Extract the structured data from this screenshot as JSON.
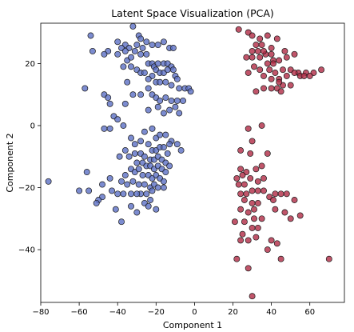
{
  "chart_data": {
    "type": "scatter",
    "title": "Latent Space Visualization (PCA)",
    "xlabel": "Component 1",
    "ylabel": "Component 2",
    "xlim": [
      -80,
      78
    ],
    "ylim": [
      -57,
      33
    ],
    "xticks": [
      -80,
      -60,
      -40,
      -20,
      0,
      20,
      40,
      60
    ],
    "yticks": [
      -40,
      -20,
      0,
      20
    ],
    "grid": false,
    "series": [
      {
        "color": "#5b6fc4",
        "points": [
          [
            -54,
            29
          ],
          [
            -40,
            27
          ],
          [
            -36,
            26
          ],
          [
            -38,
            25
          ],
          [
            -32,
            32
          ],
          [
            -29,
            29
          ],
          [
            -28,
            28
          ],
          [
            -30,
            26
          ],
          [
            -27,
            25
          ],
          [
            -25,
            27
          ],
          [
            -34,
            25
          ],
          [
            -36,
            24
          ],
          [
            -31,
            24
          ],
          [
            -22,
            26
          ],
          [
            -19,
            26
          ],
          [
            -16,
            27
          ],
          [
            -13,
            25
          ],
          [
            -11,
            25
          ],
          [
            -40,
            23
          ],
          [
            -45,
            24
          ],
          [
            -53,
            24
          ],
          [
            -47,
            23
          ],
          [
            -28,
            23
          ],
          [
            -25,
            23
          ],
          [
            -35,
            21
          ],
          [
            -33,
            22
          ],
          [
            -24,
            20
          ],
          [
            -22,
            20
          ],
          [
            -21,
            19
          ],
          [
            -19,
            20
          ],
          [
            -16,
            20
          ],
          [
            -14,
            20
          ],
          [
            -12,
            19
          ],
          [
            -20,
            18
          ],
          [
            -18,
            17
          ],
          [
            -16,
            17
          ],
          [
            -14,
            18
          ],
          [
            -22,
            16
          ],
          [
            -24,
            15
          ],
          [
            -11,
            18
          ],
          [
            -10,
            16
          ],
          [
            -9,
            15
          ],
          [
            -30,
            18
          ],
          [
            -33,
            19
          ],
          [
            -37,
            19
          ],
          [
            -28,
            17
          ],
          [
            -26,
            17
          ],
          [
            -20,
            14
          ],
          [
            -18,
            14
          ],
          [
            -15,
            14
          ],
          [
            -12,
            13
          ],
          [
            -8,
            12
          ],
          [
            -5,
            12
          ],
          [
            -3,
            12
          ],
          [
            -57,
            12
          ],
          [
            -47,
            10
          ],
          [
            -45,
            9
          ],
          [
            -44,
            7
          ],
          [
            -36,
            7
          ],
          [
            -32,
            10
          ],
          [
            -28,
            10
          ],
          [
            -22,
            10
          ],
          [
            -20,
            9
          ],
          [
            -18,
            8
          ],
          [
            -15,
            9
          ],
          [
            -12,
            8
          ],
          [
            -9,
            8
          ],
          [
            -6,
            8
          ],
          [
            -2,
            11
          ],
          [
            -24,
            5
          ],
          [
            -19,
            6
          ],
          [
            -16,
            4
          ],
          [
            -13,
            5
          ],
          [
            -10,
            6
          ],
          [
            -8,
            4
          ],
          [
            -24,
            12
          ],
          [
            -35,
            14
          ],
          [
            -42,
            3
          ],
          [
            -40,
            2
          ],
          [
            -37,
            0
          ],
          [
            -44,
            -1
          ],
          [
            -47,
            -1
          ],
          [
            -26,
            -2
          ],
          [
            -22,
            -1
          ],
          [
            -20,
            -4
          ],
          [
            -18,
            -3
          ],
          [
            -15,
            -3
          ],
          [
            -12,
            -5
          ],
          [
            -9,
            -6
          ],
          [
            -7,
            -8
          ],
          [
            -13,
            -6
          ],
          [
            -33,
            -4
          ],
          [
            -31,
            -6
          ],
          [
            -28,
            -5
          ],
          [
            -24,
            -6
          ],
          [
            -22,
            -8
          ],
          [
            -20,
            -8
          ],
          [
            -18,
            -7
          ],
          [
            -16,
            -7
          ],
          [
            -14,
            -9
          ],
          [
            -36,
            -8
          ],
          [
            -39,
            -10
          ],
          [
            -34,
            -10
          ],
          [
            -31,
            -9
          ],
          [
            -28,
            -9
          ],
          [
            -26,
            -10
          ],
          [
            -23,
            -11
          ],
          [
            -21,
            -11
          ],
          [
            -19,
            -10
          ],
          [
            -17,
            -11
          ],
          [
            -15,
            -12
          ],
          [
            -30,
            -12
          ],
          [
            -27,
            -12
          ],
          [
            -25,
            -13
          ],
          [
            -23,
            -13
          ],
          [
            -21,
            -14
          ],
          [
            -19,
            -13
          ],
          [
            -17,
            -14
          ],
          [
            -15,
            -15
          ],
          [
            -13,
            -13
          ],
          [
            -33,
            -14
          ],
          [
            -31,
            -15
          ],
          [
            -29,
            -14
          ],
          [
            -27,
            -16
          ],
          [
            -24,
            -16
          ],
          [
            -22,
            -17
          ],
          [
            -20,
            -16
          ],
          [
            -18,
            -17
          ],
          [
            -16,
            -18
          ],
          [
            -36,
            -16
          ],
          [
            -38,
            -18
          ],
          [
            -35,
            -19
          ],
          [
            -32,
            -18
          ],
          [
            -29,
            -19
          ],
          [
            -26,
            -19
          ],
          [
            -23,
            -20
          ],
          [
            -21,
            -19
          ],
          [
            -19,
            -20
          ],
          [
            -16,
            -20
          ],
          [
            -44,
            -17
          ],
          [
            -56,
            -15
          ],
          [
            -55,
            -21
          ],
          [
            -48,
            -19
          ],
          [
            -43,
            -21
          ],
          [
            -28,
            -22
          ],
          [
            -25,
            -22
          ],
          [
            -22,
            -21
          ],
          [
            -30,
            -22
          ],
          [
            -33,
            -22
          ],
          [
            -26,
            -25
          ],
          [
            -23,
            -24
          ],
          [
            -48,
            -23
          ],
          [
            -40,
            -22
          ],
          [
            -37,
            -22
          ],
          [
            -50,
            -24
          ],
          [
            -60,
            -21
          ],
          [
            -51,
            -25
          ],
          [
            -41,
            -27
          ],
          [
            -33,
            -26
          ],
          [
            -24,
            -26
          ],
          [
            -30,
            -28
          ],
          [
            -20,
            -27
          ],
          [
            -38,
            -31
          ],
          [
            -76,
            -18
          ]
        ]
      },
      {
        "color": "#b02a45",
        "points": [
          [
            23,
            31
          ],
          [
            28,
            30
          ],
          [
            30,
            29
          ],
          [
            34,
            28
          ],
          [
            38,
            29
          ],
          [
            43,
            28
          ],
          [
            32,
            26
          ],
          [
            35,
            26
          ],
          [
            30,
            24
          ],
          [
            33,
            24
          ],
          [
            40,
            25
          ],
          [
            47,
            24
          ],
          [
            27,
            22
          ],
          [
            30,
            22
          ],
          [
            34,
            22
          ],
          [
            37,
            23
          ],
          [
            41,
            21
          ],
          [
            44,
            21
          ],
          [
            48,
            22
          ],
          [
            52,
            23
          ],
          [
            41,
            20
          ],
          [
            31,
            19
          ],
          [
            34,
            18
          ],
          [
            28,
            17
          ],
          [
            39,
            18
          ],
          [
            42,
            17
          ],
          [
            46,
            18
          ],
          [
            50,
            18
          ],
          [
            54,
            17
          ],
          [
            58,
            17
          ],
          [
            62,
            17
          ],
          [
            66,
            18
          ],
          [
            36,
            16
          ],
          [
            40,
            15
          ],
          [
            44,
            15
          ],
          [
            48,
            16
          ],
          [
            52,
            17
          ],
          [
            55,
            16
          ],
          [
            57,
            16
          ],
          [
            60,
            16
          ],
          [
            36,
            12
          ],
          [
            40,
            12
          ],
          [
            43,
            12
          ],
          [
            46,
            13
          ],
          [
            50,
            13
          ],
          [
            44,
            14
          ],
          [
            32,
            11
          ],
          [
            45,
            11
          ],
          [
            38,
            20
          ],
          [
            36,
            24
          ],
          [
            40,
            23
          ],
          [
            28,
            -1
          ],
          [
            35,
            0
          ],
          [
            30,
            -5
          ],
          [
            24,
            -8
          ],
          [
            29,
            -9
          ],
          [
            38,
            -9
          ],
          [
            24,
            -14
          ],
          [
            27,
            -15
          ],
          [
            32,
            -14
          ],
          [
            35,
            -13
          ],
          [
            22,
            -17
          ],
          [
            25,
            -16
          ],
          [
            29,
            -17
          ],
          [
            33,
            -18
          ],
          [
            36,
            -17
          ],
          [
            23,
            -19
          ],
          [
            26,
            -19
          ],
          [
            30,
            -21
          ],
          [
            33,
            -21
          ],
          [
            24,
            -22
          ],
          [
            27,
            -22
          ],
          [
            36,
            -21
          ],
          [
            39,
            -23
          ],
          [
            42,
            -22
          ],
          [
            45,
            -22
          ],
          [
            48,
            -22
          ],
          [
            52,
            -24
          ],
          [
            26,
            -24
          ],
          [
            30,
            -25
          ],
          [
            33,
            -25
          ],
          [
            41,
            -24
          ],
          [
            24,
            -27
          ],
          [
            28,
            -28
          ],
          [
            21,
            -31
          ],
          [
            26,
            -31
          ],
          [
            31,
            -30
          ],
          [
            35,
            -30
          ],
          [
            30,
            -33
          ],
          [
            33,
            -33
          ],
          [
            25,
            -35
          ],
          [
            28,
            -37
          ],
          [
            24,
            -37
          ],
          [
            40,
            -37
          ],
          [
            43,
            -38
          ],
          [
            32,
            -36
          ],
          [
            38,
            -40
          ],
          [
            22,
            -43
          ],
          [
            45,
            -43
          ],
          [
            70,
            -43
          ],
          [
            28,
            -46
          ],
          [
            30,
            -55
          ],
          [
            50,
            -30
          ],
          [
            55,
            -29
          ],
          [
            47,
            -28
          ],
          [
            31,
            -27
          ],
          [
            42,
            -27
          ]
        ]
      }
    ]
  }
}
